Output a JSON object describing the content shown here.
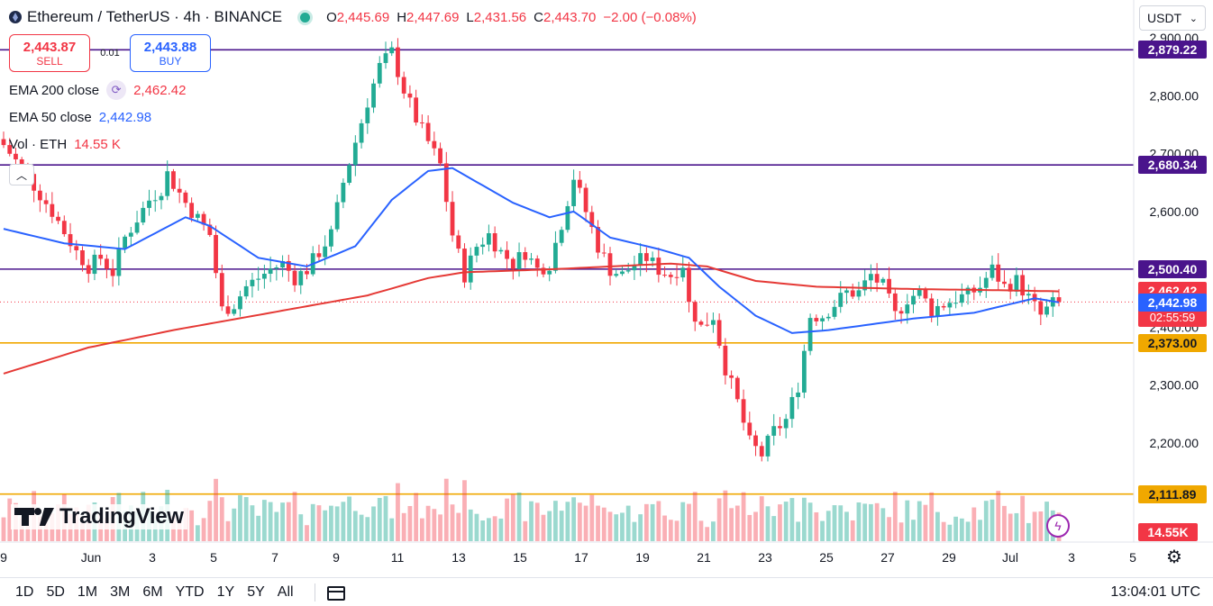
{
  "header": {
    "symbol": "Ethereum / TetherUS · 4h · BINANCE",
    "ohlc": [
      {
        "label": "O",
        "value": "2,445.69"
      },
      {
        "label": "H",
        "value": "2,447.69"
      },
      {
        "label": "L",
        "value": "2,431.56"
      },
      {
        "label": "C",
        "value": "2,443.70"
      }
    ],
    "change": "−2.00 (−0.08%)",
    "currency": "USDT"
  },
  "trade": {
    "sell_price": "2,443.87",
    "sell_label": "SELL",
    "spread": "0.01",
    "buy_price": "2,443.88",
    "buy_label": "BUY"
  },
  "indicators": {
    "ema200": {
      "name": "EMA 200 close",
      "value": "2,462.42",
      "color": "#f23645"
    },
    "ema50": {
      "name": "EMA 50 close",
      "value": "2,442.98",
      "color": "#2962ff"
    },
    "vol": {
      "name": "Vol · ETH",
      "value": "14.55 K"
    }
  },
  "brand": {
    "name": "TradingView"
  },
  "timeframes": [
    "1D",
    "5D",
    "1M",
    "3M",
    "6M",
    "YTD",
    "1Y",
    "5Y",
    "All"
  ],
  "clock": "13:04:01 UTC",
  "colors": {
    "up": "#22ab94",
    "down": "#f23645",
    "ema50": "#2962ff",
    "ema200": "#e53935",
    "level_purple": "#4a148c",
    "level_orange": "#f0a800"
  },
  "chart_data": {
    "type": "candlestick",
    "ylim": [
      2110,
      2905
    ],
    "y_ticks": [
      2200,
      2300,
      2400,
      2500,
      2600,
      2700,
      2800,
      2900
    ],
    "y_tick_labels": [
      "2,200.00",
      "2,300.00",
      "2,400.00",
      "2,500.00",
      "2,600.00",
      "2,700.00",
      "2,800.00",
      "2,900.00"
    ],
    "x_labels": [
      "9",
      "Jun",
      "3",
      "5",
      "7",
      "9",
      "11",
      "13",
      "15",
      "17",
      "19",
      "21",
      "23",
      "25",
      "27",
      "29",
      "Jul",
      "3",
      "5"
    ],
    "horizontal_levels": [
      {
        "value": 2879.22,
        "label": "2,879.22",
        "color": "#4a148c"
      },
      {
        "value": 2680.34,
        "label": "2,680.34",
        "color": "#4a148c"
      },
      {
        "value": 2500.4,
        "label": "2,500.40",
        "color": "#4a148c"
      },
      {
        "value": 2373.0,
        "label": "2,373.00",
        "color": "#f0a800"
      },
      {
        "value": 2111.89,
        "label": "2,111.89",
        "color": "#f0a800"
      }
    ],
    "price_tags": [
      {
        "value": 2462.42,
        "label": "2,462.42",
        "color": "#f23645"
      },
      {
        "value": 2443.7,
        "label": "2,443.70",
        "sub": "02:55:59",
        "color": "#f23645"
      },
      {
        "value": 2442.98,
        "label": "2,442.98",
        "color": "#2962ff"
      }
    ],
    "volume_label": "14.55K",
    "anchors": [
      [
        0,
        2715
      ],
      [
        4,
        2660
      ],
      [
        8,
        2600
      ],
      [
        12,
        2530
      ],
      [
        14,
        2505
      ],
      [
        16,
        2520
      ],
      [
        18,
        2495
      ],
      [
        20,
        2555
      ],
      [
        24,
        2620
      ],
      [
        26,
        2640
      ],
      [
        27,
        2665
      ],
      [
        30,
        2615
      ],
      [
        34,
        2560
      ],
      [
        36,
        2430
      ],
      [
        38,
        2440
      ],
      [
        40,
        2470
      ],
      [
        44,
        2500
      ],
      [
        46,
        2510
      ],
      [
        48,
        2485
      ],
      [
        50,
        2500
      ],
      [
        52,
        2530
      ],
      [
        54,
        2560
      ],
      [
        56,
        2650
      ],
      [
        58,
        2720
      ],
      [
        60,
        2790
      ],
      [
        62,
        2850
      ],
      [
        64,
        2875
      ],
      [
        66,
        2810
      ],
      [
        68,
        2760
      ],
      [
        70,
        2720
      ],
      [
        72,
        2680
      ],
      [
        74,
        2560
      ],
      [
        76,
        2490
      ],
      [
        78,
        2540
      ],
      [
        80,
        2560
      ],
      [
        82,
        2530
      ],
      [
        84,
        2510
      ],
      [
        86,
        2530
      ],
      [
        88,
        2500
      ],
      [
        90,
        2510
      ],
      [
        92,
        2580
      ],
      [
        94,
        2660
      ],
      [
        96,
        2600
      ],
      [
        98,
        2540
      ],
      [
        100,
        2500
      ],
      [
        102,
        2490
      ],
      [
        104,
        2510
      ],
      [
        106,
        2520
      ],
      [
        108,
        2500
      ],
      [
        110,
        2490
      ],
      [
        112,
        2510
      ],
      [
        113,
        2440
      ],
      [
        115,
        2400
      ],
      [
        117,
        2420
      ],
      [
        119,
        2330
      ],
      [
        121,
        2270
      ],
      [
        123,
        2200
      ],
      [
        125,
        2180
      ],
      [
        127,
        2220
      ],
      [
        129,
        2240
      ],
      [
        131,
        2300
      ],
      [
        133,
        2420
      ],
      [
        135,
        2420
      ],
      [
        137,
        2440
      ],
      [
        139,
        2460
      ],
      [
        141,
        2460
      ],
      [
        143,
        2490
      ],
      [
        145,
        2470
      ],
      [
        147,
        2420
      ],
      [
        149,
        2450
      ],
      [
        151,
        2460
      ],
      [
        153,
        2430
      ],
      [
        155,
        2440
      ],
      [
        157,
        2450
      ],
      [
        159,
        2455
      ],
      [
        161,
        2470
      ],
      [
        163,
        2500
      ],
      [
        165,
        2470
      ],
      [
        167,
        2480
      ],
      [
        169,
        2450
      ],
      [
        171,
        2420
      ],
      [
        173,
        2440
      ],
      [
        174,
        2443.7
      ]
    ],
    "ema50_anchors": [
      [
        0,
        2570
      ],
      [
        10,
        2545
      ],
      [
        20,
        2535
      ],
      [
        30,
        2590
      ],
      [
        34,
        2575
      ],
      [
        42,
        2520
      ],
      [
        50,
        2505
      ],
      [
        58,
        2540
      ],
      [
        64,
        2620
      ],
      [
        70,
        2670
      ],
      [
        74,
        2675
      ],
      [
        84,
        2615
      ],
      [
        90,
        2590
      ],
      [
        94,
        2600
      ],
      [
        100,
        2555
      ],
      [
        108,
        2535
      ],
      [
        113,
        2520
      ],
      [
        118,
        2470
      ],
      [
        124,
        2420
      ],
      [
        130,
        2390
      ],
      [
        136,
        2395
      ],
      [
        150,
        2415
      ],
      [
        160,
        2425
      ],
      [
        166,
        2440
      ],
      [
        170,
        2450
      ],
      [
        174,
        2443
      ]
    ],
    "ema200_anchors": [
      [
        0,
        2320
      ],
      [
        14,
        2365
      ],
      [
        28,
        2395
      ],
      [
        44,
        2425
      ],
      [
        60,
        2455
      ],
      [
        70,
        2485
      ],
      [
        76,
        2495
      ],
      [
        90,
        2500
      ],
      [
        100,
        2505
      ],
      [
        110,
        2510
      ],
      [
        116,
        2505
      ],
      [
        124,
        2480
      ],
      [
        134,
        2470
      ],
      [
        150,
        2466
      ],
      [
        164,
        2464
      ],
      [
        174,
        2462
      ]
    ]
  }
}
